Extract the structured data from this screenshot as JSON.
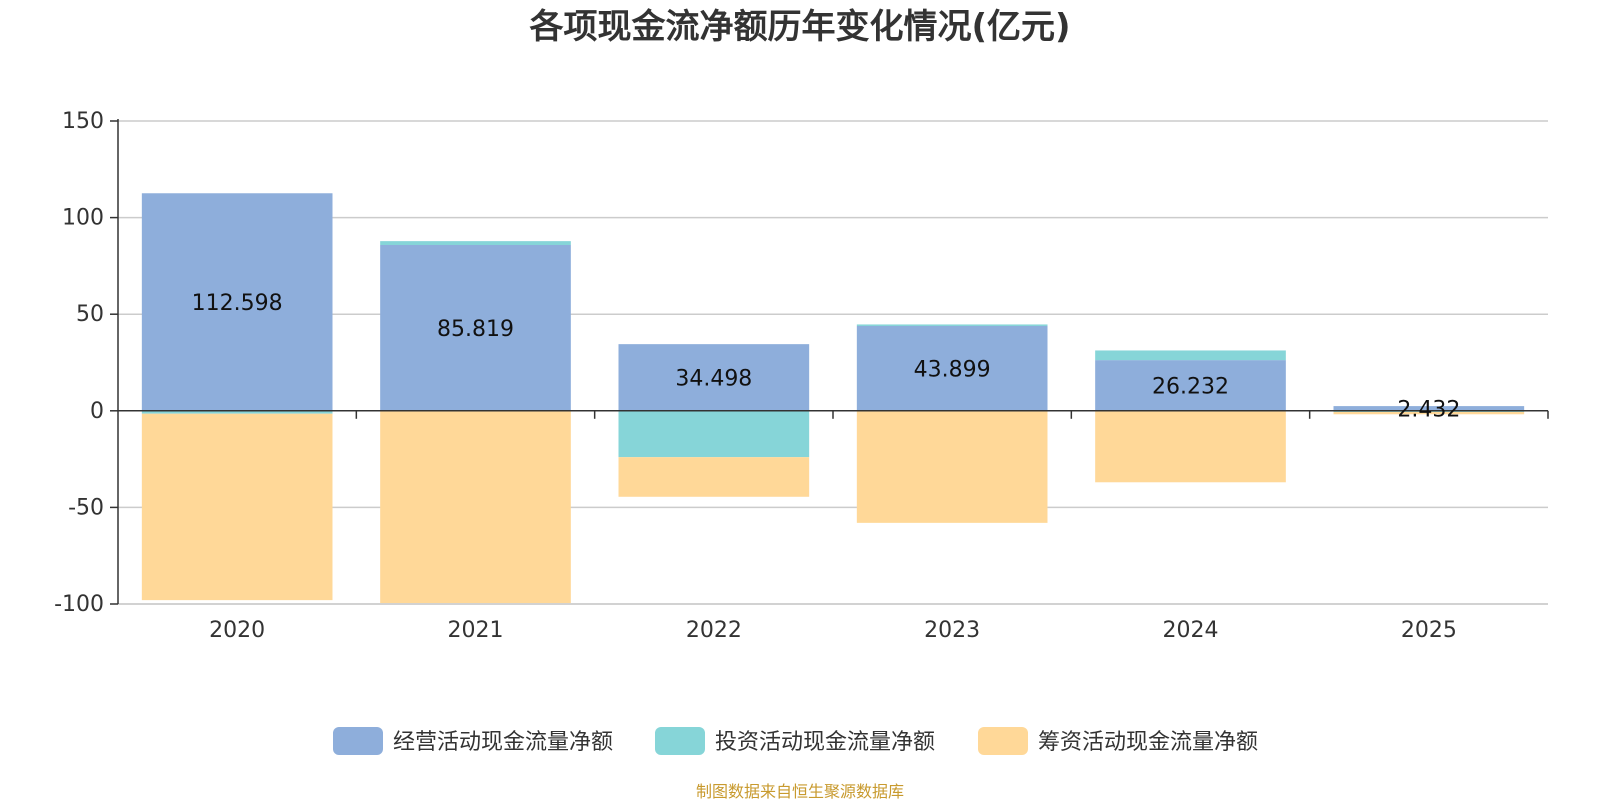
{
  "chart_data": {
    "type": "bar",
    "stacked": true,
    "title": "各项现金流净额历年变化情况(亿元)",
    "categories": [
      "2020",
      "2021",
      "2022",
      "2023",
      "2024",
      "2025"
    ],
    "series": [
      {
        "name": "经营活动现金流量净额",
        "color": "#8eaedb",
        "values": [
          112.598,
          85.819,
          34.498,
          43.899,
          26.232,
          2.432
        ]
      },
      {
        "name": "投资活动现金流量净额",
        "color": "#86d5d8",
        "values": [
          -1.5,
          2.0,
          -24.0,
          0.8,
          5.0,
          -0.6
        ]
      },
      {
        "name": "筹资活动现金流量净额",
        "color": "#ffd898",
        "values": [
          -96.5,
          -99.5,
          -20.5,
          -58.0,
          -37.0,
          -1.2
        ]
      }
    ],
    "data_labels": [
      "112.598",
      "85.819",
      "34.498",
      "43.899",
      "26.232",
      "2.432"
    ],
    "ylim": [
      -100,
      150
    ],
    "yticks": [
      150,
      100,
      50,
      0,
      -50,
      -100
    ],
    "xlabel": "",
    "ylabel": "",
    "grid": true,
    "legend_position": "bottom"
  },
  "footer": {
    "source": "制图数据来自恒生聚源数据库"
  }
}
